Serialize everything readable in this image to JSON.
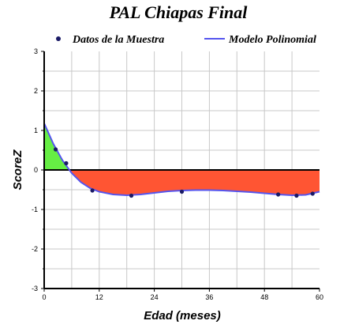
{
  "chart_data": {
    "type": "line",
    "title": "PAL Chiapas Final",
    "xlabel": "Edad (meses)",
    "ylabel": "ScoreZ",
    "xlim": [
      0,
      60
    ],
    "ylim": [
      -3,
      3
    ],
    "x_ticks": [
      "0",
      "12",
      "24",
      "36",
      "48",
      "60"
    ],
    "y_ticks": [
      "3",
      "2",
      "1",
      "0",
      "-1",
      "-2",
      "-3"
    ],
    "grid": true,
    "legend_placement": "top",
    "series": [
      {
        "name": "Datos de la Muestra",
        "kind": "scatter",
        "color": "#1a1a66",
        "x": [
          2.5,
          4.8,
          10.5,
          19,
          30,
          51,
          55,
          58.5
        ],
        "y": [
          0.52,
          0.17,
          -0.52,
          -0.65,
          -0.55,
          -0.62,
          -0.65,
          -0.6
        ]
      },
      {
        "name": "Modelo Polinomial",
        "kind": "line",
        "color": "#5555ee",
        "x": [
          0,
          2,
          4,
          6,
          8,
          10,
          12,
          15,
          18,
          21,
          24,
          27,
          30,
          33,
          36,
          39,
          42,
          45,
          48,
          51,
          54,
          57,
          60
        ],
        "y": [
          1.18,
          0.66,
          0.24,
          -0.08,
          -0.31,
          -0.46,
          -0.55,
          -0.62,
          -0.64,
          -0.62,
          -0.58,
          -0.54,
          -0.52,
          -0.51,
          -0.51,
          -0.52,
          -0.54,
          -0.56,
          -0.59,
          -0.62,
          -0.64,
          -0.63,
          -0.55
        ]
      }
    ],
    "fill_positive_color": "#66ee44",
    "fill_negative_color": "#ff5533",
    "zero_line_color": "#000000"
  }
}
